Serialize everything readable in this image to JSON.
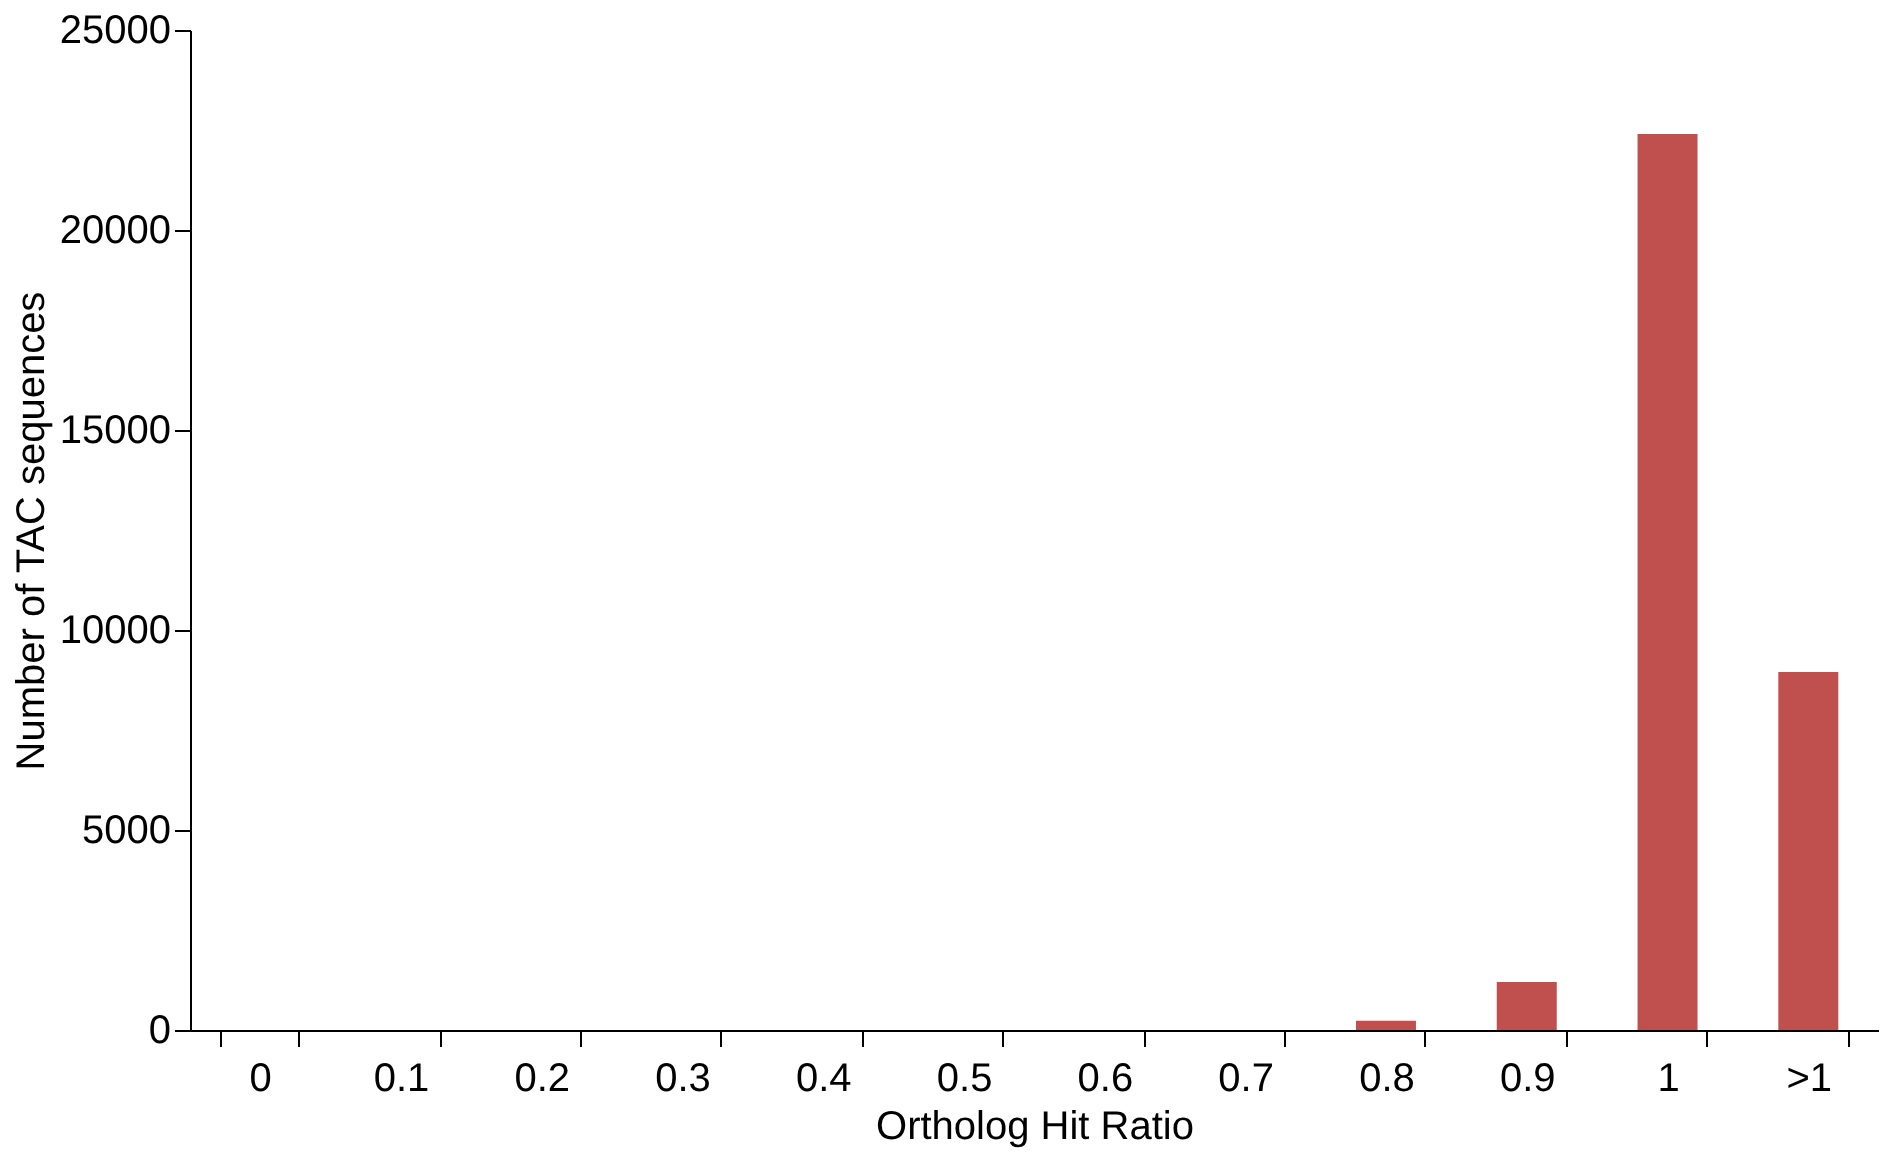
{
  "chart_data": {
    "type": "bar",
    "xlabel": "Ortholog Hit Ratio",
    "ylabel": "Number of TAC sequences",
    "categories": [
      "0",
      "0.1",
      "0.2",
      "0.3",
      "0.4",
      "0.5",
      "0.6",
      "0.7",
      "0.8",
      "0.9",
      "1",
      ">1"
    ],
    "values": [
      0,
      0,
      0,
      0,
      0,
      0,
      0,
      0,
      230,
      1200,
      22400,
      8950
    ],
    "color": "#c0504d",
    "ylim": [
      0,
      25000
    ],
    "yticks": [
      0,
      5000,
      10000,
      15000,
      20000,
      25000
    ],
    "grid": false
  }
}
